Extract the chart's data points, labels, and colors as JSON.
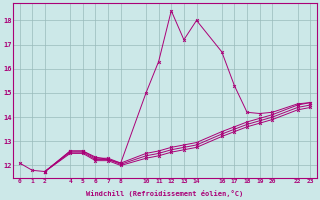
{
  "xlabel": "Windchill (Refroidissement éolien,°C)",
  "background_color": "#cce8e8",
  "line_color": "#aa0077",
  "grid_color": "#99bbbb",
  "xlim": [
    -0.5,
    23.5
  ],
  "ylim": [
    11.5,
    18.7
  ],
  "xticks": [
    0,
    1,
    2,
    4,
    5,
    6,
    7,
    8,
    10,
    11,
    12,
    13,
    14,
    16,
    17,
    18,
    19,
    20,
    22,
    23
  ],
  "yticks": [
    12,
    13,
    14,
    15,
    16,
    17,
    18
  ],
  "series_main_x": [
    0,
    1,
    2,
    4,
    5,
    6,
    7,
    8,
    10,
    11,
    12,
    13,
    14,
    16,
    17,
    18,
    19,
    20,
    22,
    23
  ],
  "series_main_y": [
    12.1,
    11.8,
    11.75,
    12.6,
    12.6,
    12.35,
    12.25,
    12.1,
    15.0,
    16.3,
    18.4,
    17.2,
    18.0,
    16.7,
    15.3,
    14.2,
    14.15,
    14.2,
    14.55,
    14.6
  ],
  "series_line1_x": [
    2,
    4,
    5,
    6,
    7,
    8,
    10,
    11,
    12,
    13,
    14,
    16,
    17,
    18,
    19,
    20,
    22,
    23
  ],
  "series_line1_y": [
    11.75,
    12.55,
    12.55,
    12.25,
    12.25,
    12.05,
    12.4,
    12.5,
    12.65,
    12.75,
    12.85,
    13.3,
    13.5,
    13.7,
    13.85,
    14.0,
    14.4,
    14.5
  ],
  "series_line2_x": [
    2,
    4,
    5,
    6,
    7,
    8,
    10,
    11,
    12,
    13,
    14,
    16,
    17,
    18,
    19,
    20,
    22,
    23
  ],
  "series_line2_y": [
    11.75,
    12.6,
    12.6,
    12.3,
    12.3,
    12.1,
    12.5,
    12.6,
    12.75,
    12.85,
    12.95,
    13.4,
    13.6,
    13.8,
    13.95,
    14.1,
    14.5,
    14.6
  ],
  "series_line3_x": [
    2,
    4,
    5,
    6,
    7,
    8,
    10,
    11,
    12,
    13,
    14,
    16,
    17,
    18,
    19,
    20,
    22,
    23
  ],
  "series_line3_y": [
    11.75,
    12.5,
    12.5,
    12.2,
    12.2,
    12.0,
    12.3,
    12.4,
    12.55,
    12.65,
    12.75,
    13.2,
    13.4,
    13.6,
    13.75,
    13.9,
    14.3,
    14.4
  ]
}
